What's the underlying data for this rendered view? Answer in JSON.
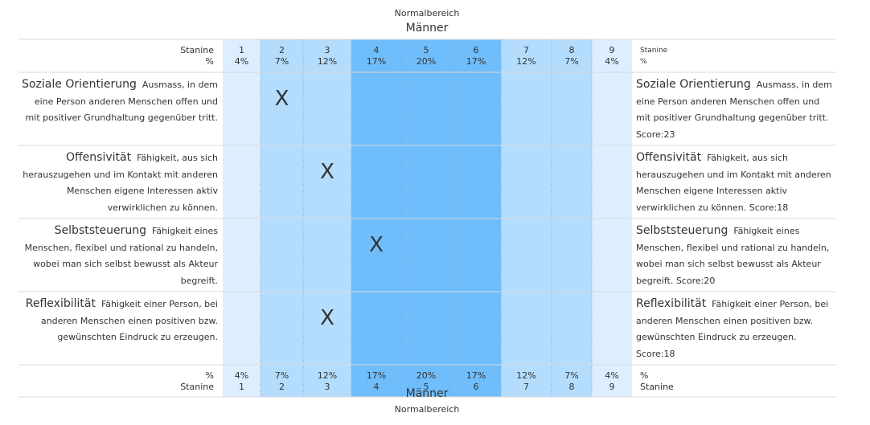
{
  "header": {
    "top_caption": "Normalbereich",
    "top_title": "Männer",
    "bottom_title": "Männer",
    "bottom_caption": "Normalbereich"
  },
  "labels": {
    "stanine": "Stanine",
    "percent": "%"
  },
  "colors": {
    "band_outer": "#ddeeff",
    "band_mid": "#b3dcfd",
    "band_center": "#6fbdfb",
    "grid": "#d9d9d9"
  },
  "chart_data": {
    "type": "table",
    "stanines": [
      "1",
      "2",
      "3",
      "4",
      "5",
      "6",
      "7",
      "8",
      "9"
    ],
    "percentages": [
      "4%",
      "7%",
      "12%",
      "17%",
      "20%",
      "17%",
      "12%",
      "7%",
      "4%"
    ],
    "marker": "X",
    "rows": [
      {
        "name": "Soziale Orientierung",
        "description": "Ausmass, in dem eine Person anderen Menschen offen und mit positiver Grundhaltung gegenüber tritt.",
        "score_text": "Score:23",
        "stanine": 2
      },
      {
        "name": "Offensivität",
        "description": "Fähigkeit, aus sich herauszugehen und im Kontakt mit anderen Menschen eigene Interessen aktiv verwirklichen zu können.",
        "score_text": "Score:18",
        "stanine": 3
      },
      {
        "name": "Selbststeuerung",
        "description": "Fähigkeit eines Menschen, flexibel und rational zu handeln, wobei man sich selbst bewusst als Akteur begreift.",
        "score_text": "Score:20",
        "stanine": 4
      },
      {
        "name": "Reflexibilität",
        "description": "Fähigkeit einer Person, bei anderen Menschen einen positiven bzw. gewünschten Eindruck zu erzeugen.",
        "score_text": "Score:18",
        "stanine": 3
      }
    ]
  }
}
